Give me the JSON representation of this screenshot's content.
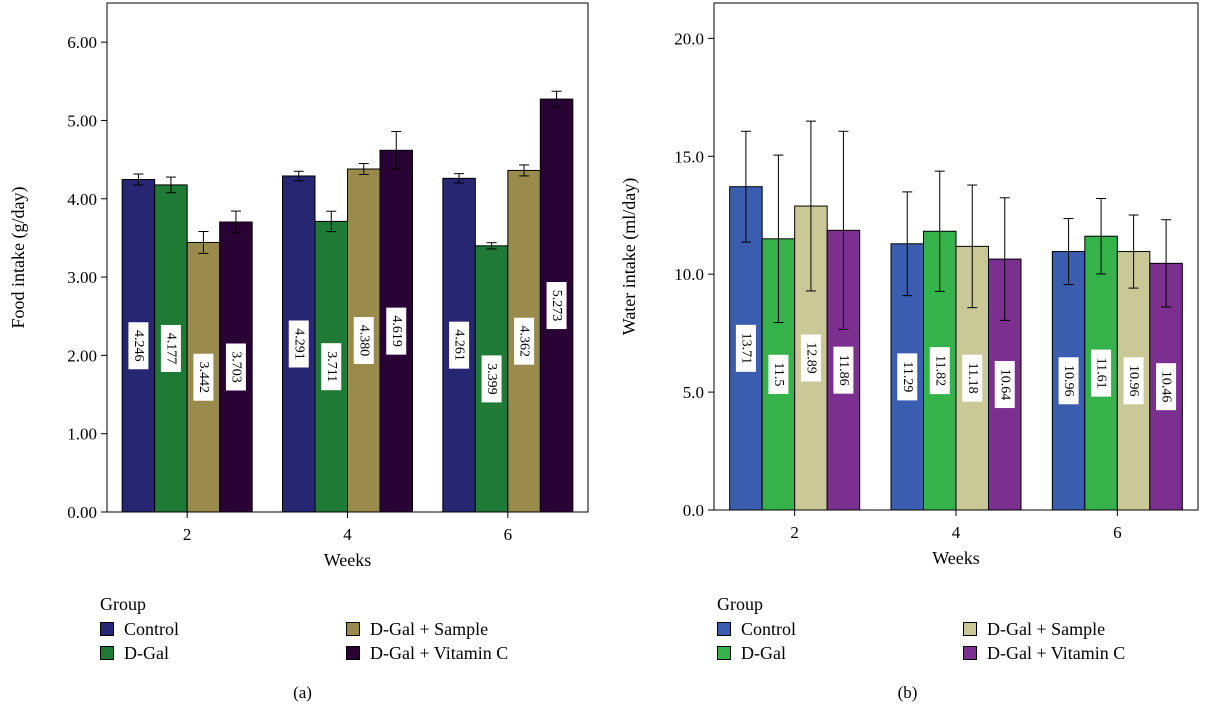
{
  "chart_data": [
    {
      "type": "bar",
      "panel_label": "(a)",
      "xlabel": "Weeks",
      "ylabel": "Food intake (g/day)",
      "categories": [
        "2",
        "4",
        "6"
      ],
      "ylim": [
        0,
        6.5
      ],
      "yticks": [
        "0.00",
        "1.00",
        "2.00",
        "3.00",
        "4.00",
        "5.00",
        "6.00"
      ],
      "ytick_values": [
        0,
        1,
        2,
        3,
        4,
        5,
        6
      ],
      "legend_title": "Group",
      "legend_position": "bottom",
      "series": [
        {
          "name": "Control",
          "color": "#262673",
          "values": [
            4.246,
            4.291,
            4.261
          ],
          "labels": [
            "4.246",
            "4.291",
            "4.261"
          ],
          "errors": [
            0.07,
            0.06,
            0.06
          ]
        },
        {
          "name": "D-Gal",
          "color": "#1e7a34",
          "values": [
            4.177,
            3.711,
            3.399
          ],
          "labels": [
            "4.177",
            "3.711",
            "3.399"
          ],
          "errors": [
            0.1,
            0.13,
            0.04
          ]
        },
        {
          "name": "D-Gal + Sample",
          "color": "#9a8a4c",
          "values": [
            3.442,
            4.38,
            4.362
          ],
          "labels": [
            "3.442",
            "4.380",
            "4.362"
          ],
          "errors": [
            0.14,
            0.07,
            0.07
          ]
        },
        {
          "name": "D-Gal + Vitamin C",
          "color": "#2a0336",
          "values": [
            3.703,
            4.619,
            5.273
          ],
          "labels": [
            "3.703",
            "4.619",
            "5.273"
          ],
          "errors": [
            0.14,
            0.24,
            0.1
          ]
        }
      ]
    },
    {
      "type": "bar",
      "panel_label": "(b)",
      "xlabel": "Weeks",
      "ylabel": "Water intake (ml/day)",
      "categories": [
        "2",
        "4",
        "6"
      ],
      "ylim": [
        0,
        21.5
      ],
      "yticks": [
        "0.0",
        "5.0",
        "10.0",
        "15.0",
        "20.0"
      ],
      "ytick_values": [
        0,
        5,
        10,
        15,
        20
      ],
      "legend_title": "Group",
      "legend_position": "bottom",
      "series": [
        {
          "name": "Control",
          "color": "#3b5db0",
          "values": [
            13.71,
            11.29,
            10.96
          ],
          "labels": [
            "13.71",
            "11.29",
            "10.96"
          ],
          "errors": [
            2.35,
            2.2,
            1.4
          ]
        },
        {
          "name": "D-Gal",
          "color": "#35b34a",
          "values": [
            11.5,
            11.82,
            11.61
          ],
          "labels": [
            "11.5",
            "11.82",
            "11.61"
          ],
          "errors": [
            3.55,
            2.55,
            1.6
          ]
        },
        {
          "name": "D-Gal + Sample",
          "color": "#cbc897",
          "values": [
            12.89,
            11.18,
            10.96
          ],
          "labels": [
            "12.89",
            "11.18",
            "10.96"
          ],
          "errors": [
            3.6,
            2.6,
            1.55
          ]
        },
        {
          "name": "D-Gal + Vitamin C",
          "color": "#7b2f8e",
          "values": [
            11.86,
            10.64,
            10.46
          ],
          "labels": [
            "11.86",
            "10.64",
            "10.46"
          ],
          "errors": [
            4.2,
            2.6,
            1.85
          ]
        }
      ]
    }
  ]
}
